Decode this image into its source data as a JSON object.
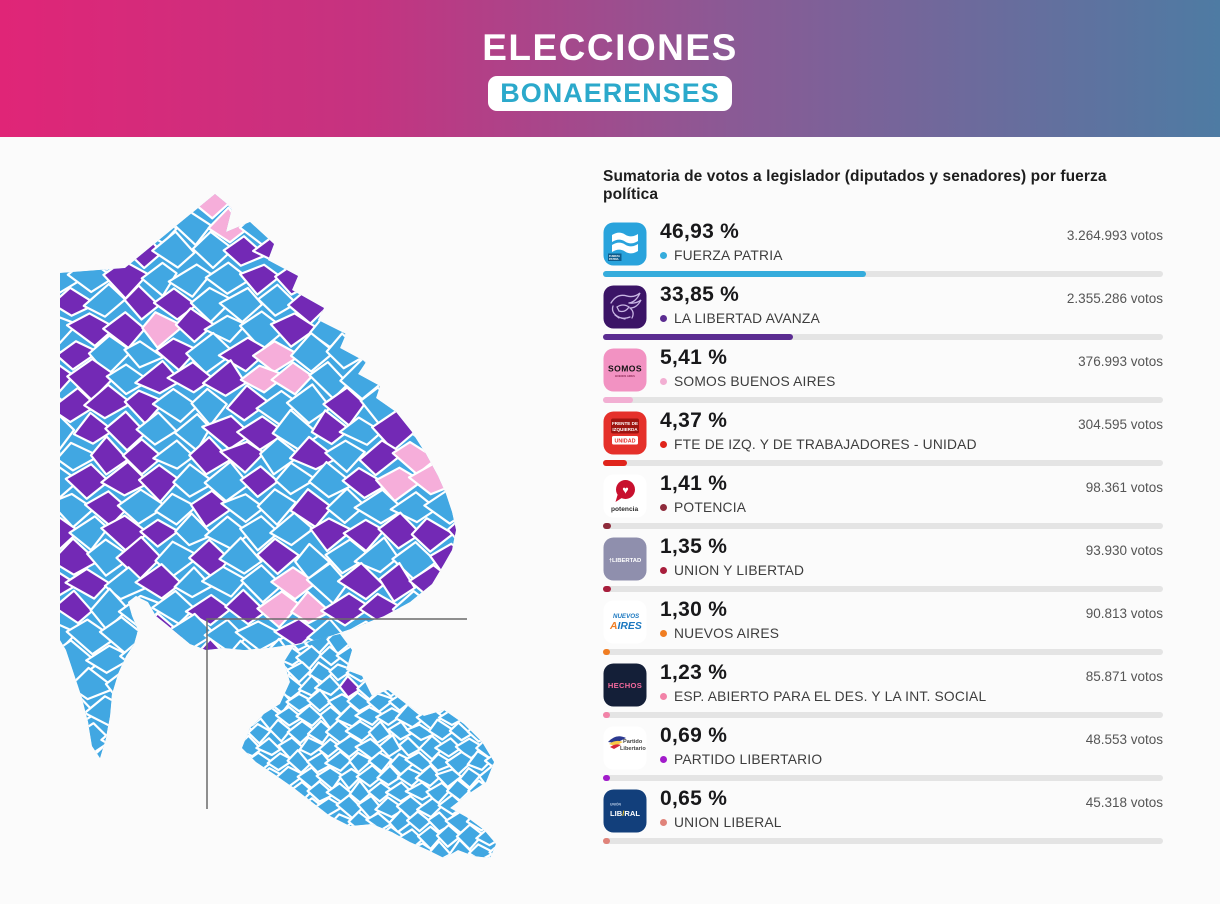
{
  "header": {
    "title": "ELECCIONES",
    "subtitle": "BONAERENSES",
    "subtitle_color": "#2BA9CB",
    "gradient": [
      "#E02577",
      "#8A5A95",
      "#4E7BA3"
    ]
  },
  "results": {
    "title": "Sumatoria de votos a legislador (diputados y senadores) por fuerza política",
    "parties": [
      {
        "name": "FUERZA PATRIA",
        "percent": 46.93,
        "percent_label": "46,93 %",
        "votes": 3264993,
        "votes_label": "3.264.993 votos",
        "color": "#35ACDC",
        "logo": {
          "kind": "fuerza-patria",
          "bg": "#29A3DC",
          "label": "FUERZA PATRIA"
        }
      },
      {
        "name": "LA LIBERTAD AVANZA",
        "percent": 33.85,
        "percent_label": "33,85 %",
        "votes": 2355286,
        "votes_label": "2.355.286 votos",
        "color": "#5B2C91",
        "logo": {
          "kind": "la-libertad-avanza",
          "bg": "#3B1466",
          "label": "LA LIBERTAD AVANZA"
        }
      },
      {
        "name": "SOMOS BUENOS AIRES",
        "percent": 5.41,
        "percent_label": "5,41 %",
        "votes": 376993,
        "votes_label": "376.993 votos",
        "color": "#F2AFD3",
        "logo": {
          "kind": "somos",
          "bg": "#F292C2",
          "label": "SOMOS"
        }
      },
      {
        "name": "FTE DE IZQ. Y DE TRABAJADORES - UNIDAD",
        "percent": 4.37,
        "percent_label": "4,37 %",
        "votes": 304595,
        "votes_label": "304.595 votos",
        "color": "#E0241B",
        "logo": {
          "kind": "fit-unidad",
          "bg": "#E5302A",
          "label": "FRENTE DE IZQUIERDA UNIDAD"
        }
      },
      {
        "name": "POTENCIA",
        "percent": 1.41,
        "percent_label": "1,41 %",
        "votes": 98361,
        "votes_label": "98.361 votos",
        "color": "#8E2B3B",
        "logo": {
          "kind": "potencia",
          "bg": "#FFFFFF",
          "label": "potencia"
        }
      },
      {
        "name": "UNION Y LIBERTAD",
        "percent": 1.35,
        "percent_label": "1,35 %",
        "votes": 93930,
        "votes_label": "93.930 votos",
        "color": "#A81E3C",
        "logo": {
          "kind": "union-y-libertad",
          "bg": "#8F8FAD",
          "label": "LIBERTAD"
        }
      },
      {
        "name": "NUEVOS AIRES",
        "percent": 1.3,
        "percent_label": "1,30 %",
        "votes": 90813,
        "votes_label": "90.813 votos",
        "color": "#F07D22",
        "logo": {
          "kind": "nuevos-aires",
          "bg": "#FFFFFF",
          "label": "NUEVOS AIRES"
        }
      },
      {
        "name": "ESP. ABIERTO PARA EL DES. Y LA INT. SOCIAL",
        "percent": 1.23,
        "percent_label": "1,23 %",
        "votes": 85871,
        "votes_label": "85.871 votos",
        "color": "#F283A8",
        "logo": {
          "kind": "hechos",
          "bg": "#141F38",
          "label": "HECHOS"
        }
      },
      {
        "name": "PARTIDO LIBERTARIO",
        "percent": 0.69,
        "percent_label": "0,69 %",
        "votes": 48553,
        "votes_label": "48.553 votos",
        "color": "#A21CCB",
        "logo": {
          "kind": "partido-libertario",
          "bg": "#FFFFFF",
          "label": "Partido Libertario"
        }
      },
      {
        "name": "UNION LIBERAL",
        "percent": 0.65,
        "percent_label": "0,65 %",
        "votes": 45318,
        "votes_label": "45.318 votos",
        "color": "#E0837A",
        "logo": {
          "kind": "union-liberal",
          "bg": "#123F7B",
          "label": "LIBERAL"
        }
      }
    ]
  },
  "map": {
    "palette": {
      "fuerza_patria": "#41A7E2",
      "la_libertad_avanza": "#7329B5",
      "somos": "#F6AEDA"
    },
    "district_border_color": "#FFFFFF",
    "inset_border_color": "#6A6A6A"
  },
  "chart_data": [
    {
      "type": "bar",
      "title": "Sumatoria de votos a legislador (diputados y senadores) por fuerza política",
      "categories": [
        "FUERZA PATRIA",
        "LA LIBERTAD AVANZA",
        "SOMOS BUENOS AIRES",
        "FTE DE IZQ. Y DE TRABAJADORES - UNIDAD",
        "POTENCIA",
        "UNION Y LIBERTAD",
        "NUEVOS AIRES",
        "ESP. ABIERTO PARA EL DES. Y LA INT. SOCIAL",
        "PARTIDO LIBERTARIO",
        "UNION LIBERAL"
      ],
      "series": [
        {
          "name": "Porcentaje (%)",
          "values": [
            46.93,
            33.85,
            5.41,
            4.37,
            1.41,
            1.35,
            1.3,
            1.23,
            0.69,
            0.65
          ]
        },
        {
          "name": "Votos",
          "values": [
            3264993,
            2355286,
            376993,
            304595,
            98361,
            93930,
            90813,
            85871,
            48553,
            45318
          ]
        }
      ],
      "xlabel": "",
      "ylabel": "",
      "xlim": [
        0,
        100
      ],
      "grid": false,
      "legend_position": "none"
    },
    {
      "type": "heatmap",
      "title": "Mapa de resultados por municipio - Provincia de Buenos Aires (con recuadro del Gran Buenos Aires)",
      "legend": [
        {
          "label": "FUERZA PATRIA",
          "color": "#41A7E2"
        },
        {
          "label": "LA LIBERTAD AVANZA",
          "color": "#7329B5"
        },
        {
          "label": "SOMOS BUENOS AIRES",
          "color": "#F6AEDA"
        }
      ],
      "note": "Choropleth: ganador por municipio; mayoría celeste, bloques violetas al oeste/sur, pocos municipios rosas; el recuadro del conurbano es casi todo celeste"
    }
  ]
}
